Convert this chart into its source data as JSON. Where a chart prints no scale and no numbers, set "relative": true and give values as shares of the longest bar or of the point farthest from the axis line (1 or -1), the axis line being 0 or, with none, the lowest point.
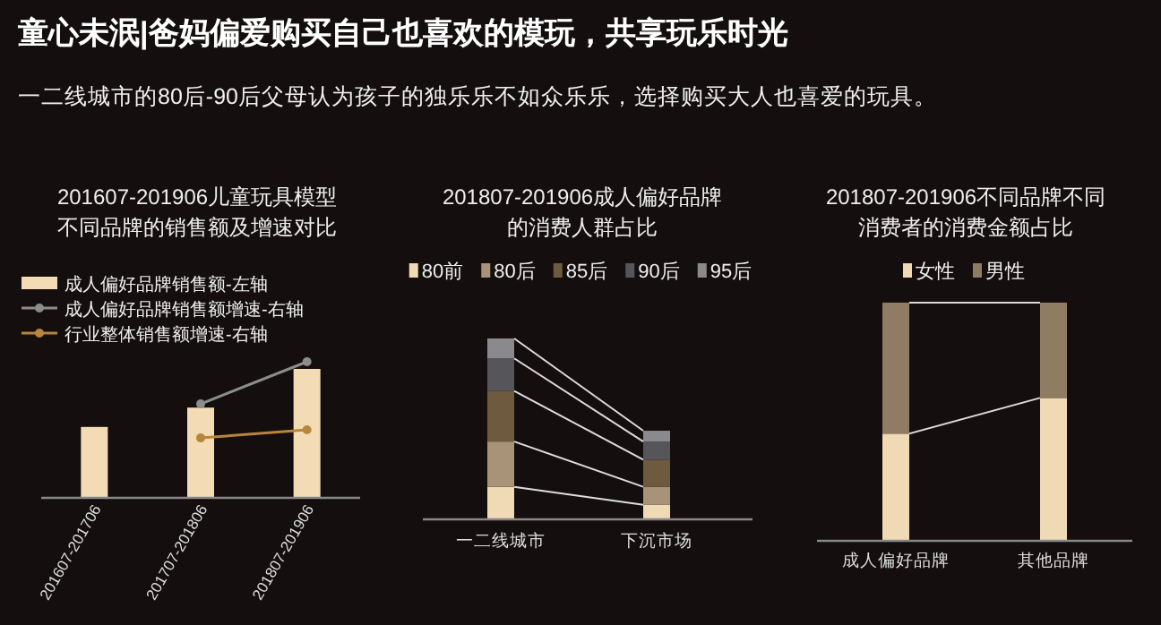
{
  "chart_data": [
    {
      "type": "other",
      "title": "童心未泯|爸妈偏爱购买自己也喜欢的模玩，共享玩乐时光",
      "subtitle": "一二线城市的80后-90后父母认为孩子的独乐乐不如众乐乐，选择购买大人也喜爱的玩具。"
    },
    {
      "type": "bar",
      "title": "201607-201906儿童玩具模型不同品牌的销售额及增速对比",
      "relative": true,
      "legend": "top left",
      "marker": "circle",
      "categories": [
        "201607-201706",
        "201707-201806",
        "201807-201906"
      ],
      "series": [
        {
          "name": "成人偏好品牌销售额-左轴",
          "color": "#f3dcb5",
          "values": [
            0.55,
            0.7,
            1.0
          ]
        },
        {
          "name": "成人偏好品牌销售额增速-右轴",
          "type": "line",
          "axis": "y2",
          "color": "#8c8c8c",
          "values": [
            null,
            0.69,
            1.0
          ]
        },
        {
          "name": "行业整体销售额增速-右轴",
          "type": "line",
          "axis": "y2",
          "color": "#b8863b",
          "values": [
            null,
            0.44,
            0.5
          ]
        }
      ]
    },
    {
      "type": "bar",
      "title": "201807-201906成人偏好品牌的消费人群占比",
      "relative": true,
      "stacked": true,
      "legend": "top",
      "categories": [
        "一二线城市",
        "下沉市场"
      ],
      "series": [
        {
          "name": "80前",
          "color": "#f0d9b5",
          "values": [
            0.18,
            0.08
          ]
        },
        {
          "name": "80后",
          "color": "#a89378",
          "values": [
            0.25,
            0.1
          ]
        },
        {
          "name": "85后",
          "color": "#6e5a3e",
          "values": [
            0.28,
            0.15
          ]
        },
        {
          "name": "90后",
          "color": "#55555a",
          "values": [
            0.18,
            0.1
          ]
        },
        {
          "name": "95后",
          "color": "#8a8a8e",
          "values": [
            0.11,
            0.06
          ]
        }
      ]
    },
    {
      "type": "bar",
      "title": "201807-201906不同品牌不同消费者的消费金额占比",
      "relative": true,
      "stacked": true,
      "legend": "top",
      "categories": [
        "成人偏好品牌",
        "其他品牌"
      ],
      "series": [
        {
          "name": "女性",
          "color": "#f0d9b5",
          "values": [
            0.45,
            0.6
          ]
        },
        {
          "name": "男性",
          "color": "#8f7c63",
          "values": [
            0.55,
            0.4
          ]
        }
      ]
    }
  ]
}
